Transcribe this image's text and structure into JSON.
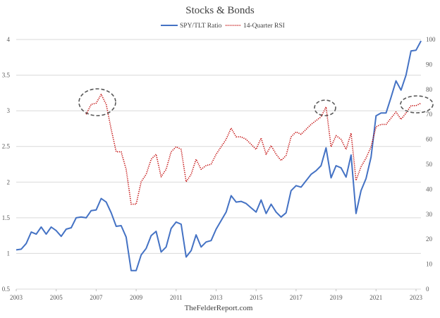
{
  "chart_data": {
    "type": "line",
    "title": "Stocks & Bonds",
    "footer": "TheFelderReport.com",
    "legend_position": "top-center",
    "grid": true,
    "x_ticks": [
      "2003",
      "2005",
      "2007",
      "2009",
      "2011",
      "2013",
      "2015",
      "2017",
      "2019",
      "2021",
      "2023"
    ],
    "xlim": [
      2003,
      2023
    ],
    "y_left_ticks": [
      "0.5",
      "1",
      "1.5",
      "2",
      "2.5",
      "3",
      "3.5",
      "4"
    ],
    "ylim_left": [
      0.5,
      4
    ],
    "y_right_ticks": [
      "0",
      "10",
      "20",
      "30",
      "40",
      "50",
      "60",
      "70",
      "80",
      "90",
      "100"
    ],
    "ylim_right": [
      0,
      100
    ],
    "series": [
      {
        "name": "SPY/TLT Ratio",
        "axis": "left",
        "color": "#4472C4",
        "style": "solid",
        "x_start": 2003.0,
        "x_step": 0.25,
        "values": [
          1.05,
          1.06,
          1.14,
          1.3,
          1.27,
          1.37,
          1.27,
          1.37,
          1.32,
          1.24,
          1.34,
          1.36,
          1.5,
          1.51,
          1.5,
          1.6,
          1.61,
          1.77,
          1.72,
          1.57,
          1.38,
          1.39,
          1.23,
          0.76,
          0.76,
          0.98,
          1.07,
          1.25,
          1.31,
          1.02,
          1.09,
          1.35,
          1.44,
          1.41,
          0.95,
          1.04,
          1.26,
          1.09,
          1.16,
          1.18,
          1.34,
          1.46,
          1.58,
          1.81,
          1.72,
          1.73,
          1.7,
          1.64,
          1.58,
          1.75,
          1.56,
          1.69,
          1.58,
          1.51,
          1.57,
          1.88,
          1.95,
          1.93,
          2.02,
          2.11,
          2.16,
          2.23,
          2.48,
          2.06,
          2.23,
          2.2,
          2.07,
          2.38,
          1.56,
          1.88,
          2.05,
          2.35,
          2.93,
          2.97,
          2.97,
          3.19,
          3.42,
          3.29,
          3.5,
          3.84,
          3.85,
          3.98
        ]
      },
      {
        "name": "14-Quarter RSI",
        "axis": "right",
        "color": "#C00000",
        "style": "dotted",
        "x_start": 2006.5,
        "x_step": 0.25,
        "values": [
          70,
          74,
          74.5,
          78,
          74,
          64,
          55,
          55,
          48,
          34,
          34,
          43,
          46,
          52,
          54,
          45,
          48,
          55,
          57,
          56,
          43,
          46,
          52,
          48,
          49.5,
          50,
          54,
          57,
          60,
          64.5,
          61,
          61,
          60,
          58,
          56,
          60.5,
          54,
          57.5,
          54,
          51.5,
          53.5,
          61,
          63,
          62,
          64,
          66,
          67.5,
          69,
          73,
          57,
          61.5,
          60,
          56,
          62.5,
          43.5,
          49,
          52.5,
          57,
          65,
          66,
          66,
          68.5,
          71,
          68,
          70.5,
          73.5,
          73.5,
          74.5
        ]
      }
    ]
  }
}
